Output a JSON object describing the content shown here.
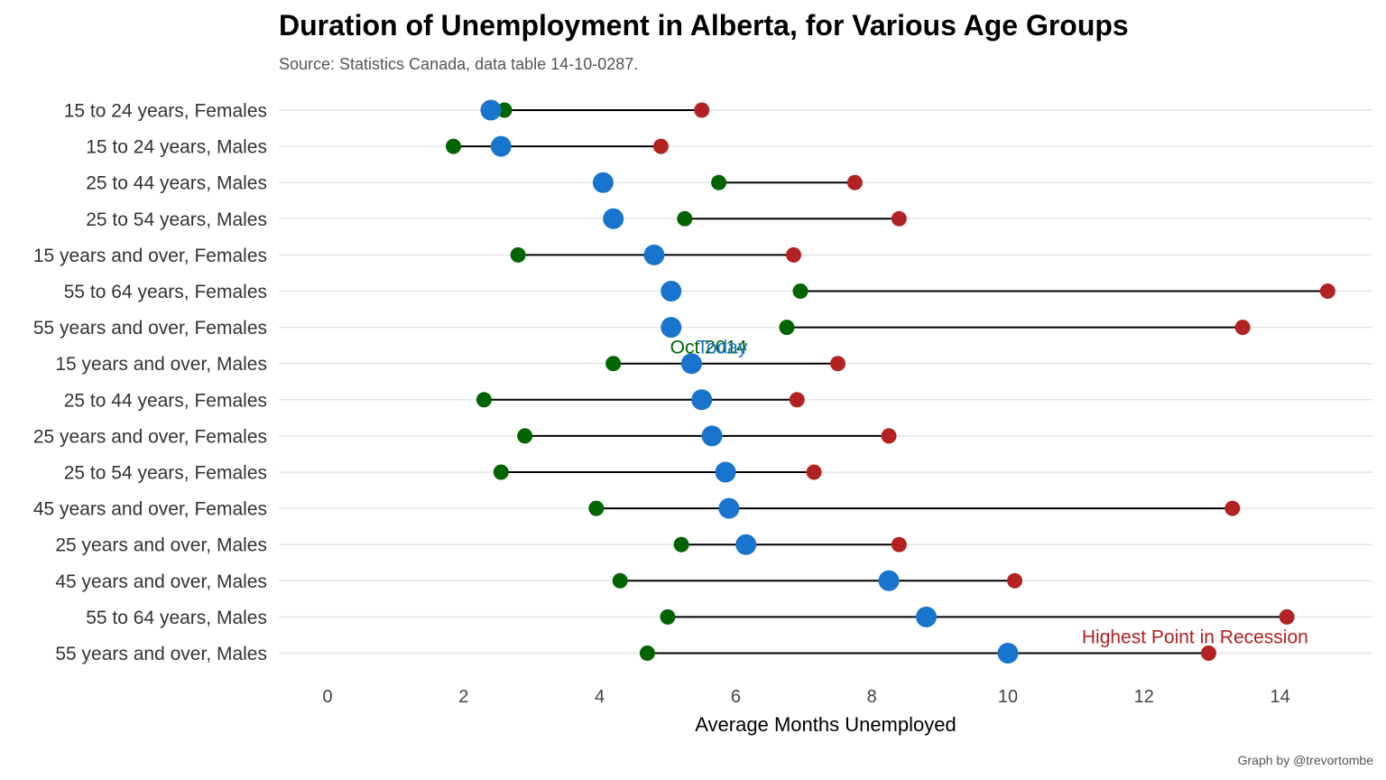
{
  "title": "Duration of Unemployment in Alberta, for Various Age Groups",
  "subtitle": "Source: Statistics Canada, data table 14-10-0287.",
  "caption": "Graph by @trevortombe",
  "colors": {
    "oct2014": "#006400",
    "today": "#1874CD",
    "recession": "#B22222",
    "segment": "#000000"
  },
  "chart_data": {
    "type": "scatter",
    "title": "Duration of Unemployment in Alberta, for Various Age Groups",
    "xlabel": "Average Months Unemployed",
    "ylabel": "",
    "xlim": [
      -0.7,
      15.4
    ],
    "xticks": [
      0,
      2,
      4,
      6,
      8,
      10,
      12,
      14
    ],
    "grid": "horizontal",
    "categories": [
      "15 to 24 years, Females",
      "15 to 24 years, Males",
      "25 to 44 years, Males",
      "25 to 54 years, Males",
      "15 years and over, Females",
      "55 to 64 years, Females",
      "55 years and over, Females",
      "15 years and over, Males",
      "25 to 44 years, Females",
      "25 years and over, Females",
      "25 to 54 years, Females",
      "45 years and over, Females",
      "25 years and over, Males",
      "45 years and over, Males",
      "55 to 64 years, Males",
      "55 years and over, Males"
    ],
    "series": [
      {
        "name": "Oct 2014",
        "key": "oct2014",
        "values": [
          2.6,
          1.85,
          5.75,
          5.25,
          2.8,
          6.95,
          6.75,
          4.2,
          2.3,
          2.9,
          2.55,
          3.95,
          5.2,
          4.3,
          5.0,
          4.7
        ]
      },
      {
        "name": "Today",
        "key": "today",
        "values": [
          2.4,
          2.55,
          4.05,
          4.2,
          4.8,
          5.05,
          5.05,
          5.35,
          5.5,
          5.65,
          5.85,
          5.9,
          6.15,
          8.25,
          8.8,
          10.0
        ]
      },
      {
        "name": "Highest Point in Recession",
        "key": "recession",
        "values": [
          5.5,
          4.9,
          7.75,
          8.4,
          6.85,
          14.7,
          13.45,
          7.5,
          6.9,
          8.25,
          7.15,
          13.3,
          8.4,
          10.1,
          14.1,
          12.95
        ]
      }
    ],
    "annotations": [
      {
        "text": "Oct 2014",
        "series": "oct2014",
        "x": 5.6,
        "category": "15 years and over, Males"
      },
      {
        "text": "Today",
        "series": "today",
        "x": 5.8,
        "category": "15 years and over, Males"
      },
      {
        "text": "Highest Point in Recession",
        "series": "recession",
        "x": 12.75,
        "category": "55 years and over, Males"
      }
    ]
  }
}
